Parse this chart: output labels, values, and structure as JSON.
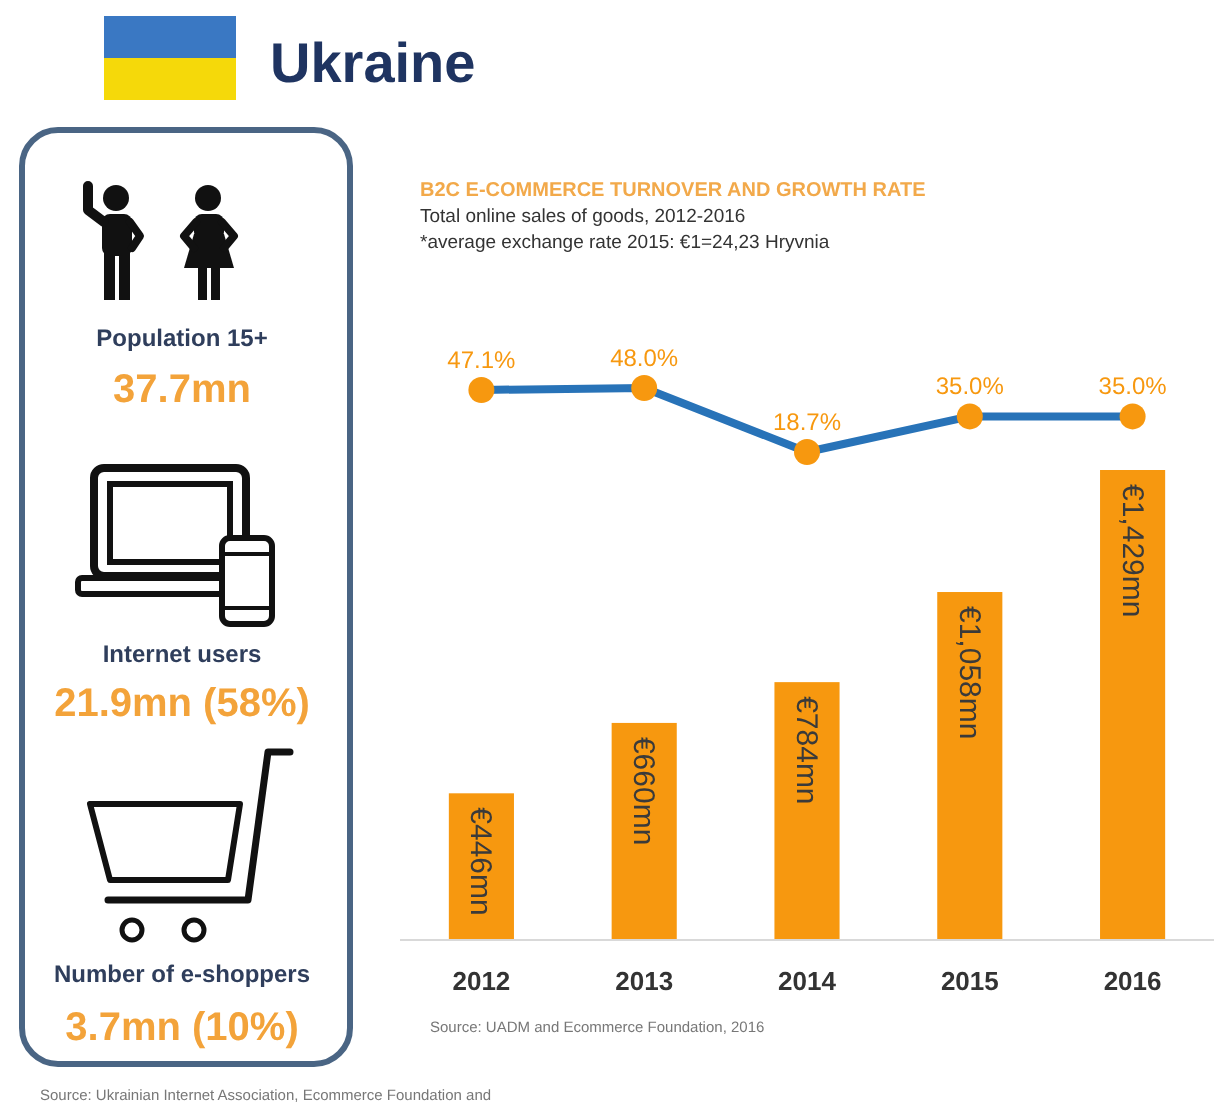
{
  "chart_data": [
    {
      "type": "other",
      "title": "Ukraine",
      "annotations": [
        "Population 15+",
        "37.7mn",
        "Internet users",
        "21.9mn (58%)",
        "Number of e-shoppers",
        "3.7mn (10%)",
        "Source: Ukrainian Internet Association, Ecommerce Foundation and"
      ]
    },
    {
      "type": "line",
      "title": "B2C E-COMMERCE TURNOVER AND GROWTH RATE",
      "subtitle": "Total online sales of goods, 2012-2016",
      "annotations": [
        "*average exchange rate 2015: €1=24,23 Hryvnia"
      ],
      "categories": [
        "2012",
        "2013",
        "2014",
        "2015",
        "2016"
      ],
      "series": [
        {
          "color": "#2873b8",
          "colors": [
            "#f7980f",
            "#f7980f",
            "#f7980f",
            "#f7980f",
            "#f7980f"
          ],
          "values": [
            47.1,
            48.0,
            18.7,
            35.0,
            35.0
          ],
          "value_labels": [
            "47.1%",
            "48.0%",
            "18.7%",
            "35.0%",
            "35.0%"
          ]
        }
      ],
      "marker": "circle",
      "tick_labels": false
    },
    {
      "type": "bar",
      "annotations": [
        "Source: UADM and Ecommerce Foundation, 2016"
      ],
      "categories": [
        "2012",
        "2013",
        "2014",
        "2015",
        "2016"
      ],
      "series": [
        {
          "color": "#f7980f",
          "values": [
            446,
            660,
            784,
            1058,
            1429
          ],
          "value_labels": [
            "€446mn",
            "€660mn",
            "€784mn",
            "€1,058mn",
            "€1,429mn"
          ]
        }
      ]
    }
  ]
}
